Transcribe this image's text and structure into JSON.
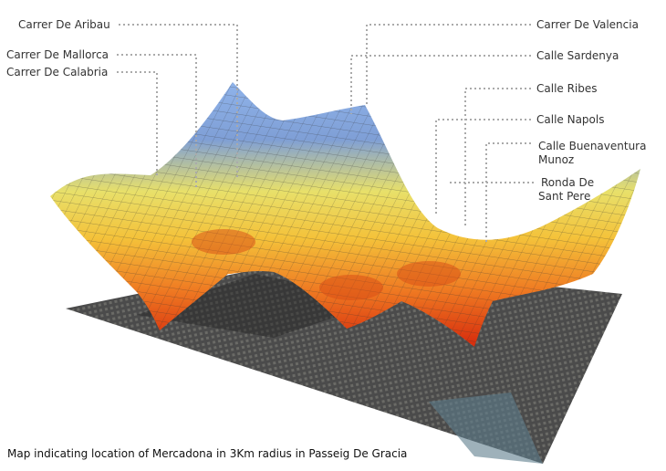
{
  "labels_left": [
    {
      "lines": [
        "Carrer De Aribau"
      ]
    },
    {
      "lines": [
        "Carrer De Mallorca"
      ]
    },
    {
      "lines": [
        "Carrer De Calabria"
      ]
    }
  ],
  "labels_right": [
    {
      "lines": [
        "Carrer De Valencia"
      ]
    },
    {
      "lines": [
        "Calle Sardenya"
      ]
    },
    {
      "lines": [
        "Calle Ribes"
      ]
    },
    {
      "lines": [
        "Calle Napols"
      ]
    },
    {
      "lines": [
        "Calle Buenaventura",
        "Munoz"
      ]
    },
    {
      "lines": [
        "Ronda De",
        "Sant Pere"
      ]
    }
  ],
  "caption": "Map indicating location of Mercadona in 3Km radius in Passeig De Gracia"
}
